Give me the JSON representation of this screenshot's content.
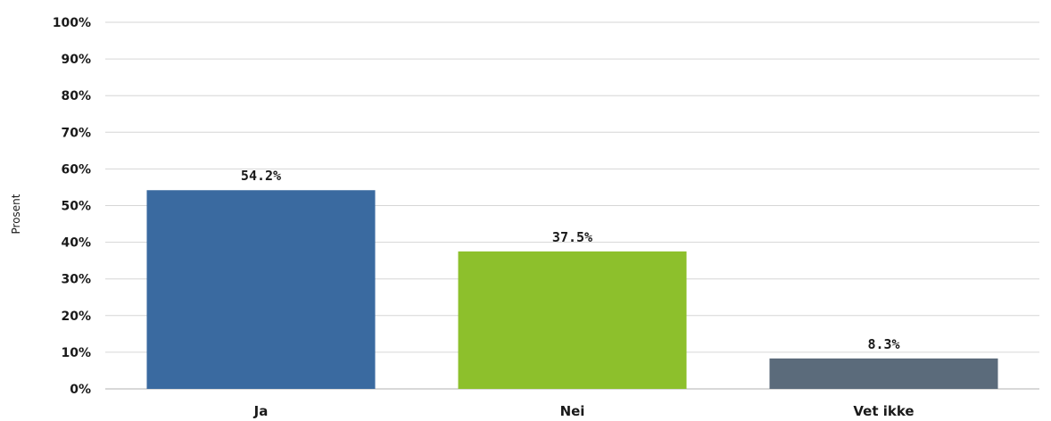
{
  "chart_data": {
    "type": "bar",
    "title": "",
    "xlabel": "",
    "ylabel": "Prosent",
    "categories": [
      "Ja",
      "Nei",
      "Vet ikke"
    ],
    "values": [
      54.2,
      37.5,
      8.3
    ],
    "value_labels": [
      "54.2%",
      "37.5%",
      "8.3%"
    ],
    "colors": [
      "#3a6aa0",
      "#8dc02c",
      "#5b6b7b"
    ],
    "ylim": [
      0,
      100
    ],
    "yticks": [
      0,
      10,
      20,
      30,
      40,
      50,
      60,
      70,
      80,
      90,
      100
    ],
    "ytick_labels": [
      "0%",
      "10%",
      "20%",
      "30%",
      "40%",
      "50%",
      "60%",
      "70%",
      "80%",
      "90%",
      "100%"
    ],
    "grid": true,
    "legend": "none"
  }
}
